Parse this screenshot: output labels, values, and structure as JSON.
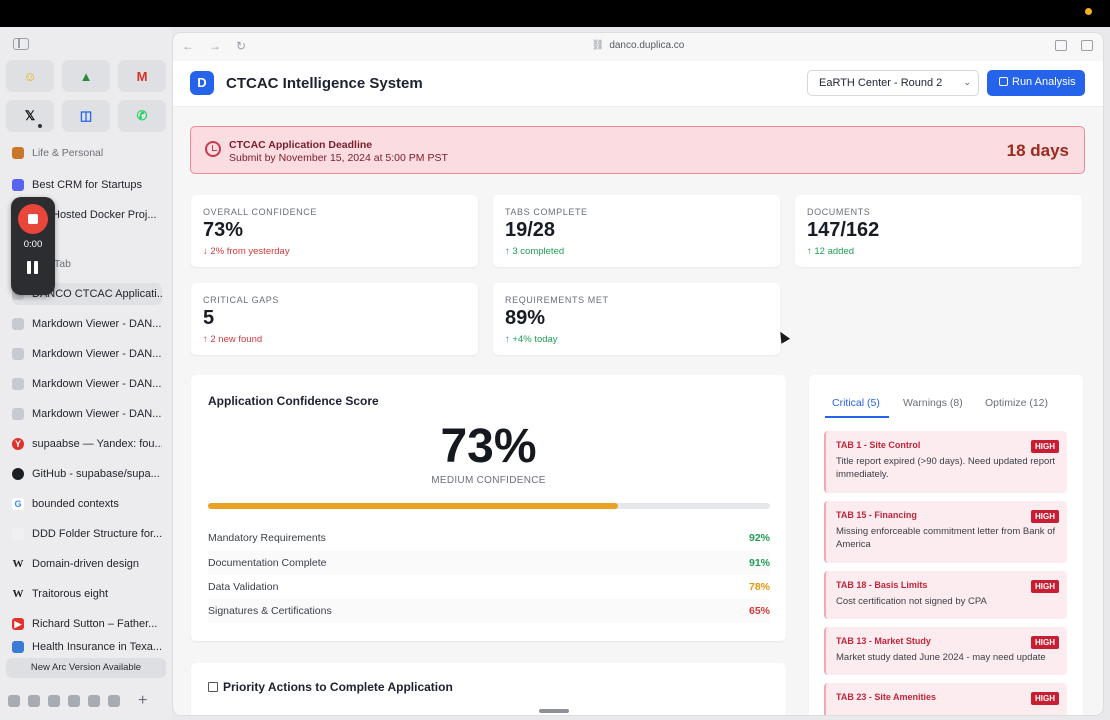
{
  "sidebar": {
    "favorites": [
      {
        "icon": "smiley-icon",
        "glyph": "☺",
        "color": "#e8b400"
      },
      {
        "icon": "drive-icon",
        "glyph": "▲",
        "color": "#2b8a3e"
      },
      {
        "icon": "gmail-icon",
        "glyph": "M",
        "color": "#d93025"
      },
      {
        "icon": "x-icon",
        "glyph": "𝕏",
        "color": "#111111"
      },
      {
        "icon": "appstore-icon",
        "glyph": "◫",
        "color": "#2563eb"
      },
      {
        "icon": "whatsapp-icon",
        "glyph": "✆",
        "color": "#25d366"
      }
    ],
    "section_life": "Life & Personal",
    "item_crm": "Best CRM for Startups",
    "item_docker": "Hosted Docker Proj...",
    "section_tab": "Tab",
    "items": [
      "DANCO CTCAC Applicati...",
      "Markdown Viewer - DAN...",
      "Markdown Viewer - DAN...",
      "Markdown Viewer - DAN...",
      "Markdown Viewer - DAN...",
      "supaabse — Yandex: fou...",
      "GitHub - supabase/supa...",
      "bounded contexts",
      "DDD Folder Structure for...",
      "Domain-driven design",
      "Traitorous eight",
      "Richard Sutton – Father...",
      "Health Insurance in Texa..."
    ],
    "new_version": "New Arc Version Available",
    "recorder_time": "0:00"
  },
  "browser": {
    "url": "danco.duplica.co"
  },
  "header": {
    "logo_letter": "D",
    "title": "CTCAC Intelligence System",
    "selector_value": "EaRTH Center - Round 2",
    "run_label": "Run Analysis"
  },
  "deadline": {
    "title": "CTCAC Application Deadline",
    "subtitle": "Submit by November 15, 2024 at 5:00 PM PST",
    "days": "18 days"
  },
  "stats": [
    {
      "label": "OVERALL CONFIDENCE",
      "value": "73%",
      "delta": "↓ 2% from yesterday",
      "tone": "red"
    },
    {
      "label": "TABS COMPLETE",
      "value": "19/28",
      "delta": "↑ 3 completed",
      "tone": "green"
    },
    {
      "label": "DOCUMENTS",
      "value": "147/162",
      "delta": "↑ 12 added",
      "tone": "green"
    },
    {
      "label": "CRITICAL GAPS",
      "value": "5",
      "delta": "↑ 2 new found",
      "tone": "red"
    },
    {
      "label": "REQUIREMENTS MET",
      "value": "89%",
      "delta": "↑ +4% today",
      "tone": "green"
    }
  ],
  "confidence": {
    "title": "Application Confidence Score",
    "score": "73%",
    "score_fraction": 0.73,
    "level": "MEDIUM CONFIDENCE",
    "bar_color": "#e9a224",
    "metrics": [
      {
        "label": "Mandatory Requirements",
        "value": "92%",
        "tone": "green"
      },
      {
        "label": "Documentation Complete",
        "value": "91%",
        "tone": "green"
      },
      {
        "label": "Data Validation",
        "value": "78%",
        "tone": "orange"
      },
      {
        "label": "Signatures & Certifications",
        "value": "65%",
        "tone": "red"
      }
    ]
  },
  "issues_panel": {
    "tabs": [
      "Critical (5)",
      "Warnings (8)",
      "Optimize (12)"
    ],
    "items": [
      {
        "title": "TAB 1 - Site Control",
        "badge": "HIGH",
        "body": "Title report expired (>90 days). Need updated report immediately."
      },
      {
        "title": "TAB 15 - Financing",
        "badge": "HIGH",
        "body": "Missing enforceable commitment letter from Bank of America"
      },
      {
        "title": "TAB 18 - Basis Limits",
        "badge": "HIGH",
        "body": "Cost certification not signed by CPA"
      },
      {
        "title": "TAB 13 - Market Study",
        "badge": "HIGH",
        "body": "Market study dated June 2024 - may need update"
      },
      {
        "title": "TAB 23 - Site Amenities",
        "badge": "HIGH",
        "body": ""
      }
    ]
  },
  "priority": {
    "title": "Priority Actions to Complete Application"
  }
}
